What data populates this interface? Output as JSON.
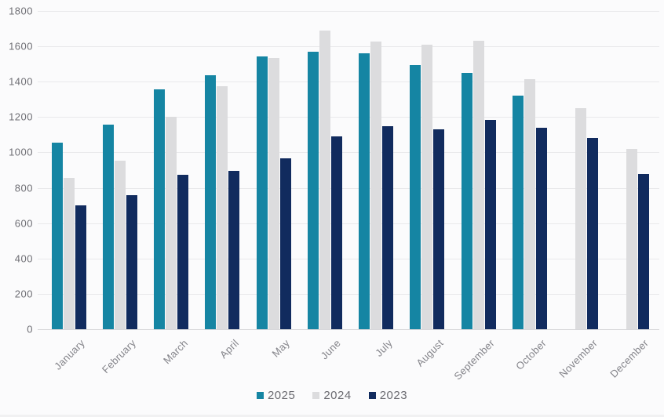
{
  "chart_data": {
    "type": "bar",
    "title": "",
    "xlabel": "",
    "ylabel": "",
    "categories": [
      "January",
      "February",
      "March",
      "April",
      "May",
      "June",
      "July",
      "August",
      "September",
      "October",
      "November",
      "December"
    ],
    "series": [
      {
        "name": "2025",
        "color": "#1585a3",
        "values": [
          1055,
          1155,
          1355,
          1435,
          1545,
          1570,
          1560,
          1495,
          1450,
          1320,
          null,
          null
        ]
      },
      {
        "name": "2024",
        "color": "#dcdcde",
        "values": [
          855,
          955,
          1200,
          1375,
          1535,
          1690,
          1625,
          1610,
          1630,
          1415,
          1250,
          1020
        ]
      },
      {
        "name": "2023",
        "color": "#112b5e",
        "values": [
          700,
          760,
          875,
          895,
          965,
          1090,
          1150,
          1130,
          1185,
          1140,
          1080,
          880
        ]
      }
    ],
    "ylim": [
      0,
      1800
    ],
    "ytick_step": 200,
    "grid": true,
    "legend_position": "bottom"
  },
  "colors": {
    "background": "#fbfbfc",
    "gridline": "#e9e9eb",
    "zero_line": "#d7d7da",
    "tick_label": "#6f6f75",
    "month_label": "#84848a",
    "legend_label": "#6b6b71"
  }
}
